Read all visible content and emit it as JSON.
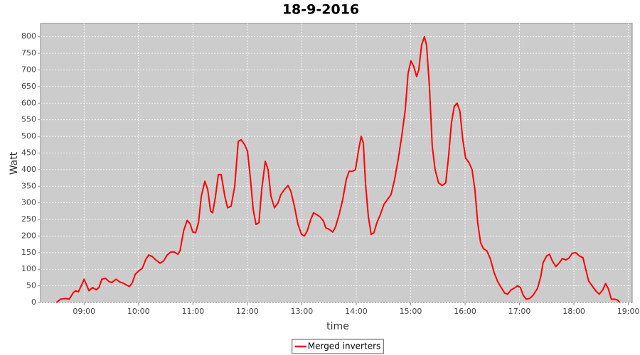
{
  "chart_data": {
    "type": "line",
    "title": "18-9-2016",
    "x_label": "time",
    "y_label": "Watt",
    "grid": true,
    "legend": "bottom",
    "background": "#cccccc",
    "xlim": [
      8.2,
      19.07
    ],
    "ylim": [
      0,
      840
    ],
    "xticks": [
      {
        "value": 9,
        "label": "09:00"
      },
      {
        "value": 10,
        "label": "10:00"
      },
      {
        "value": 11,
        "label": "11:00"
      },
      {
        "value": 12,
        "label": "12:00"
      },
      {
        "value": 13,
        "label": "13:00"
      },
      {
        "value": 14,
        "label": "14:00"
      },
      {
        "value": 15,
        "label": "15:00"
      },
      {
        "value": 16,
        "label": "16:00"
      },
      {
        "value": 17,
        "label": "17:00"
      },
      {
        "value": 18,
        "label": "18:00"
      },
      {
        "value": 19,
        "label": "19:00"
      }
    ],
    "yticks": [
      0,
      50,
      100,
      150,
      200,
      250,
      300,
      350,
      400,
      450,
      500,
      550,
      600,
      650,
      700,
      750,
      800
    ],
    "x": [
      8.491,
      8.569,
      8.661,
      8.726,
      8.804,
      8.843,
      8.896,
      8.948,
      9.0,
      9.039,
      9.091,
      9.157,
      9.222,
      9.274,
      9.326,
      9.392,
      9.457,
      9.509,
      9.587,
      9.653,
      9.718,
      9.783,
      9.836,
      9.888,
      9.94,
      10.005,
      10.07,
      10.136,
      10.188,
      10.253,
      10.319,
      10.397,
      10.462,
      10.527,
      10.593,
      10.658,
      10.723,
      10.762,
      10.828,
      10.893,
      10.945,
      10.997,
      11.05,
      11.102,
      11.154,
      11.219,
      11.272,
      11.324,
      11.363,
      11.415,
      11.467,
      11.52,
      11.585,
      11.637,
      11.702,
      11.768,
      11.833,
      11.885,
      11.95,
      12.003,
      12.055,
      12.107,
      12.159,
      12.212,
      12.264,
      12.329,
      12.381,
      12.433,
      12.499,
      12.564,
      12.616,
      12.681,
      12.747,
      12.799,
      12.864,
      12.93,
      12.995,
      13.047,
      13.099,
      13.164,
      13.217,
      13.269,
      13.334,
      13.399,
      13.439,
      13.504,
      13.569,
      13.621,
      13.687,
      13.752,
      13.817,
      13.869,
      13.935,
      13.987,
      14.039,
      14.091,
      14.131,
      14.17,
      14.222,
      14.274,
      14.326,
      14.379,
      14.444,
      14.509,
      14.574,
      14.64,
      14.705,
      14.77,
      14.836,
      14.901,
      14.953,
      15.005,
      15.058,
      15.11,
      15.149,
      15.201,
      15.253,
      15.292,
      15.345,
      15.397,
      15.449,
      15.514,
      15.58,
      15.645,
      15.697,
      15.749,
      15.801,
      15.854,
      15.906,
      15.958,
      16.01,
      16.076,
      16.128,
      16.18,
      16.232,
      16.285,
      16.337,
      16.402,
      16.467,
      16.533,
      16.598,
      16.663,
      16.729,
      16.781,
      16.846,
      16.911,
      16.964,
      17.016,
      17.068,
      17.12,
      17.186,
      17.251,
      17.329,
      17.394,
      17.433,
      17.499,
      17.551,
      17.603,
      17.668,
      17.734,
      17.786,
      17.851,
      17.904,
      17.969,
      18.034,
      18.099,
      18.165,
      18.217,
      18.269,
      18.334,
      18.4,
      18.465,
      18.53,
      18.582,
      18.635,
      18.687,
      18.752,
      18.804,
      18.843
    ],
    "series": [
      {
        "name": "Merged inverters",
        "color": "#ff0000",
        "values": [
          0,
          10,
          12,
          10,
          30,
          35,
          32,
          50,
          70,
          55,
          35,
          45,
          38,
          45,
          70,
          73,
          63,
          60,
          70,
          62,
          58,
          52,
          48,
          60,
          85,
          95,
          103,
          130,
          143,
          138,
          128,
          118,
          125,
          143,
          152,
          152,
          145,
          155,
          215,
          247,
          238,
          212,
          210,
          240,
          320,
          365,
          340,
          275,
          270,
          320,
          385,
          385,
          320,
          285,
          290,
          350,
          485,
          490,
          475,
          455,
          375,
          280,
          235,
          240,
          340,
          425,
          400,
          320,
          285,
          300,
          325,
          340,
          352,
          335,
          290,
          235,
          205,
          200,
          215,
          250,
          270,
          265,
          258,
          245,
          225,
          220,
          212,
          228,
          265,
          310,
          370,
          395,
          395,
          400,
          455,
          500,
          480,
          360,
          260,
          205,
          210,
          240,
          265,
          295,
          310,
          325,
          370,
          430,
          500,
          580,
          690,
          727,
          710,
          680,
          700,
          775,
          800,
          775,
          650,
          470,
          400,
          360,
          352,
          360,
          440,
          540,
          590,
          600,
          575,
          490,
          435,
          420,
          400,
          340,
          240,
          180,
          162,
          155,
          130,
          90,
          63,
          45,
          28,
          25,
          38,
          44,
          50,
          45,
          22,
          10,
          12,
          22,
          42,
          80,
          120,
          140,
          145,
          125,
          108,
          120,
          132,
          128,
          133,
          148,
          150,
          140,
          135,
          100,
          65,
          50,
          35,
          25,
          38,
          57,
          40,
          10,
          10,
          7,
          0
        ]
      }
    ]
  }
}
